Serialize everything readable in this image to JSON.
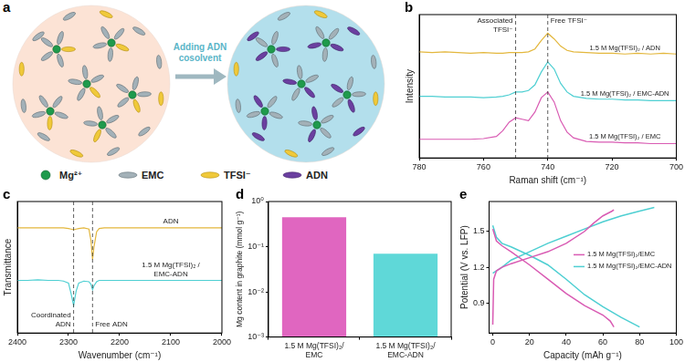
{
  "diagram": {
    "panel": "a",
    "arrow_label": "Adding ADN cosolvent",
    "species": [
      {
        "label": "Mg²⁺",
        "color": "#1f9a4c"
      },
      {
        "label": "EMC",
        "color": "#a3b1b8"
      },
      {
        "label": "TFSI⁻",
        "color": "#f0c93a"
      },
      {
        "label": "ADN",
        "color": "#6b3fa0"
      }
    ]
  },
  "chart_data": [
    {
      "panel": "b",
      "type": "line",
      "x_label": "Raman shift (cm⁻¹)",
      "y_label": "Intensity",
      "x": [
        780,
        776,
        772,
        768,
        764,
        760,
        756,
        754,
        752,
        750,
        748,
        746,
        744,
        742,
        740,
        738,
        736,
        734,
        732,
        728,
        724,
        720,
        716,
        712,
        708,
        704,
        700
      ],
      "series": [
        {
          "name": "1.5 M Mg(TFSI)₂ / ADN",
          "color": "#e3b73d",
          "values": [
            7.4,
            7.35,
            7.4,
            7.35,
            7.3,
            7.35,
            7.3,
            7.3,
            7.35,
            7.35,
            7.35,
            7.4,
            7.6,
            8.2,
            8.7,
            8.3,
            7.8,
            7.5,
            7.4,
            7.35,
            7.3,
            7.3,
            7.25,
            7.3,
            7.25,
            7.3,
            7.25
          ]
        },
        {
          "name": "1.5 M Mg(TFSI)₂ / EMC-ADN",
          "color": "#4ecfd2",
          "values": [
            4.3,
            4.3,
            4.25,
            4.25,
            4.25,
            4.2,
            4.25,
            4.3,
            4.4,
            4.6,
            4.6,
            4.7,
            5.1,
            6.0,
            6.7,
            6.2,
            5.2,
            4.6,
            4.3,
            4.15,
            4.1,
            4.1,
            4.05,
            4.05,
            4.0,
            4.0,
            4.0
          ]
        },
        {
          "name": "1.5 M Mg(TFSI)₂ / EMC",
          "color": "#d95bb3",
          "values": [
            1.3,
            1.3,
            1.3,
            1.3,
            1.3,
            1.35,
            1.5,
            1.9,
            2.5,
            2.8,
            2.7,
            2.6,
            3.2,
            4.2,
            4.6,
            3.9,
            2.6,
            1.8,
            1.4,
            1.15,
            1.1,
            1.1,
            1.05,
            1.05,
            1.0,
            1.0,
            1.0
          ]
        }
      ],
      "xlim": [
        780,
        700
      ],
      "xticks": [
        780,
        760,
        740,
        720,
        700
      ],
      "ylim": [
        0,
        10
      ],
      "tick_labels": "x",
      "grid": false,
      "vlines": [
        {
          "x": 750,
          "label": "Associated TFSI⁻"
        },
        {
          "x": 740,
          "label": "Free TFSI⁻"
        }
      ]
    },
    {
      "panel": "c",
      "type": "line",
      "x_label": "Wavenumber (cm⁻¹)",
      "y_label": "Transmittance",
      "x": [
        2400,
        2380,
        2360,
        2340,
        2320,
        2310,
        2300,
        2295,
        2290,
        2285,
        2280,
        2270,
        2260,
        2256,
        2253,
        2250,
        2245,
        2240,
        2230,
        2200,
        2150,
        2100,
        2050,
        2000
      ],
      "series": [
        {
          "name": "ADN",
          "color": "#e3b73d",
          "values": [
            8,
            8,
            8,
            8,
            8,
            8,
            7.95,
            7.9,
            7.85,
            7.9,
            7.95,
            8,
            7.9,
            7.0,
            5.6,
            6.6,
            7.7,
            7.95,
            8,
            8,
            8,
            8,
            8,
            8
          ]
        },
        {
          "name": "1.5 M Mg(TFSI)₂ / EMC-ADN",
          "color": "#4ecfd2",
          "values": [
            4.0,
            4.0,
            4.05,
            4.0,
            4.0,
            3.95,
            3.8,
            3.0,
            2.1,
            3.2,
            3.8,
            3.95,
            3.9,
            3.7,
            3.3,
            3.6,
            3.9,
            4.0,
            4.0,
            4.0,
            4.0,
            4.0,
            4.0,
            4.0
          ]
        }
      ],
      "xlim": [
        2400,
        2000
      ],
      "xticks": [
        2400,
        2300,
        2200,
        2100,
        2000
      ],
      "ylim": [
        0,
        10
      ],
      "tick_labels": "x",
      "grid": false,
      "vlines": [
        {
          "x": 2290,
          "label": "Coordinated ADN"
        },
        {
          "x": 2253,
          "label": "Free ADN"
        }
      ]
    },
    {
      "panel": "d",
      "type": "bar",
      "y_label": "Mg content in graphite (mmol g⁻¹)",
      "categories": [
        "1.5 M Mg(TFSI)₂/ EMC",
        "1.5 M Mg(TFSI)₂/ EMC-ADN"
      ],
      "values": [
        0.45,
        0.07
      ],
      "colors": [
        "#e066c0",
        "#5fd8d8"
      ],
      "log": "y",
      "ylim": [
        0.001,
        1
      ],
      "yticks": [
        {
          "value": 0.001,
          "label": "10⁻³"
        },
        {
          "value": 0.01,
          "label": "10⁻²"
        },
        {
          "value": 0.1,
          "label": "10⁻¹"
        },
        {
          "value": 1,
          "label": "10⁰"
        }
      ],
      "grid": false
    },
    {
      "panel": "e",
      "type": "line",
      "x_label": "Capacity (mAh g⁻¹)",
      "y_label": "Potential (V vs. LFP)",
      "series": [
        {
          "name": "1.5 M Mg(TFSI)₂/EMC",
          "color": "#d95bb3",
          "x": [
            0,
            0.5,
            2,
            5,
            10,
            20,
            30,
            40,
            50,
            55,
            60,
            65,
            66,
            0,
            0,
            2,
            5,
            10,
            20,
            30,
            40,
            50,
            60,
            64,
            66
          ],
          "values": [
            0.72,
            1.1,
            1.17,
            1.2,
            1.23,
            1.28,
            1.33,
            1.4,
            1.5,
            1.57,
            1.63,
            1.67,
            1.68,
            null,
            1.52,
            1.42,
            1.38,
            1.33,
            1.22,
            1.1,
            0.98,
            0.88,
            0.8,
            0.75,
            0.7
          ]
        },
        {
          "name": "1.5 M Mg(TFSI)₂/EMC-ADN",
          "color": "#4ecfd2",
          "x": [
            0,
            5,
            10,
            20,
            30,
            40,
            50,
            60,
            70,
            80,
            88,
            0,
            0,
            2,
            5,
            10,
            20,
            30,
            40,
            50,
            60,
            70,
            80
          ],
          "values": [
            1.15,
            1.2,
            1.26,
            1.33,
            1.4,
            1.46,
            1.52,
            1.58,
            1.63,
            1.67,
            1.7,
            null,
            1.55,
            1.45,
            1.4,
            1.37,
            1.3,
            1.22,
            1.1,
            0.97,
            0.87,
            0.78,
            0.7
          ]
        }
      ],
      "xlim": [
        -2,
        100
      ],
      "xticks": [
        0,
        20,
        40,
        60,
        80,
        100
      ],
      "ylim": [
        0.65,
        1.75
      ],
      "yticks": [
        0.9,
        1.2,
        1.5
      ],
      "legend": "right",
      "grid": false
    }
  ]
}
